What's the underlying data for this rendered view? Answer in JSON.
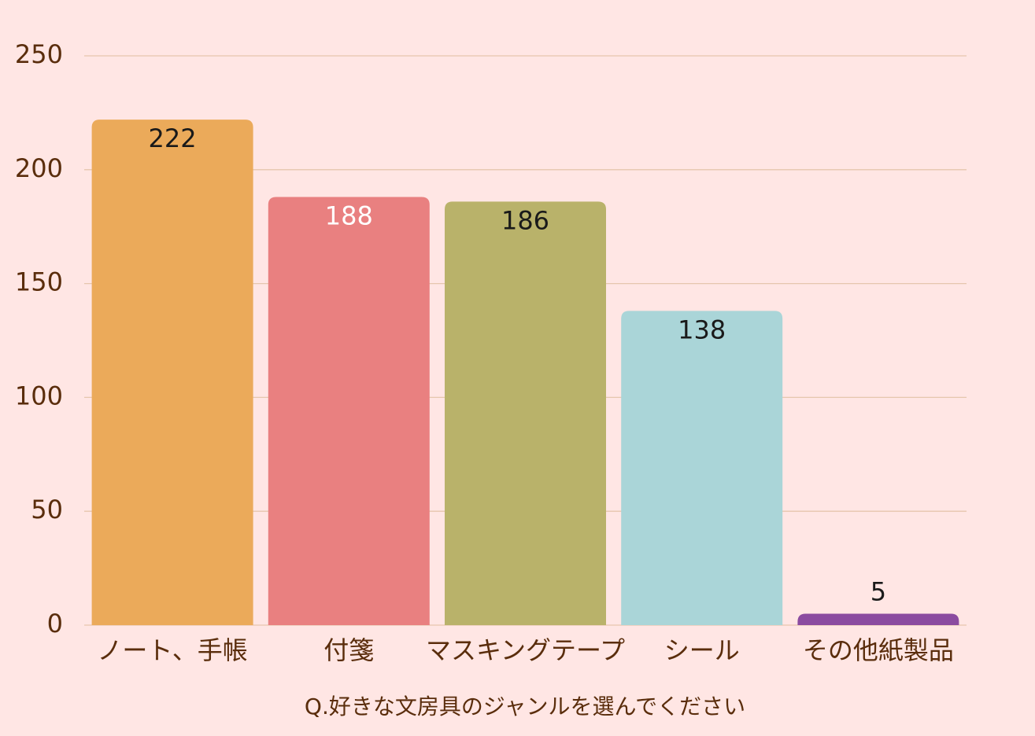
{
  "chart_data": {
    "type": "bar",
    "x_label": "Q.好きな文房具のジャンルを選んでください",
    "categories": [
      "ノート、手帳",
      "付箋",
      "マスキングテープ",
      "シール",
      "その他紙製品"
    ],
    "values": [
      222,
      188,
      186,
      138,
      5
    ],
    "colors": [
      "#ebaa5a",
      "#e98080",
      "#b9b26a",
      "#aad5d8",
      "#8b4ba0"
    ],
    "value_label_colors": [
      "#1a1a1a",
      "#ffffff",
      "#1a1a1a",
      "#1a1a1a",
      "#1a1a1a"
    ],
    "ylim": [
      0,
      250
    ],
    "yticks": [
      0,
      50,
      100,
      150,
      200,
      250
    ],
    "grid": true
  }
}
